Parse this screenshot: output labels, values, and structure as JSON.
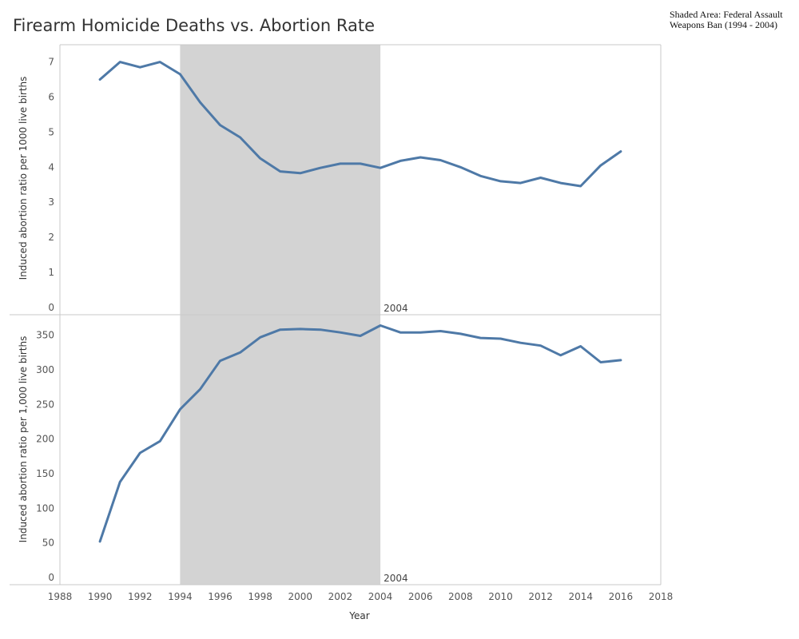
{
  "title": "Firearm Homicide Deaths vs. Abortion Rate",
  "note": "Shaded Area: Federal Assault Weapons Ban (1994 - 2004)",
  "colors": {
    "line": "#4e79a7",
    "shade": "#d3d3d3",
    "border": "#c8c8c8"
  },
  "chart_data": [
    {
      "type": "line",
      "title": "",
      "xlabel": "",
      "ylabel": "Induced abortion ratio per 1000 live births",
      "xlim": [
        1988,
        2018
      ],
      "ylim": [
        0,
        7.4
      ],
      "yticks": [
        0,
        1,
        2,
        3,
        4,
        5,
        6,
        7
      ],
      "grid": false,
      "shaded_range": [
        1994,
        2004
      ],
      "marker_label": "2004",
      "x": [
        1990,
        1991,
        1992,
        1993,
        1994,
        1995,
        1996,
        1997,
        1998,
        1999,
        2000,
        2001,
        2002,
        2003,
        2004,
        2005,
        2006,
        2007,
        2008,
        2009,
        2010,
        2011,
        2012,
        2013,
        2014,
        2015,
        2016
      ],
      "series": [
        {
          "values": [
            6.5,
            7.0,
            6.85,
            7.0,
            6.65,
            5.85,
            5.2,
            4.85,
            4.25,
            3.88,
            3.83,
            3.98,
            4.1,
            4.1,
            3.98,
            4.18,
            4.28,
            4.2,
            4.0,
            3.75,
            3.6,
            3.55,
            3.7,
            3.55,
            3.46,
            4.05,
            4.45
          ]
        }
      ]
    },
    {
      "type": "line",
      "title": "",
      "xlabel": "Year",
      "ylabel": "Induced abortion ratio per 1,000 live births",
      "xlim": [
        1988,
        2018
      ],
      "ylim": [
        0,
        375
      ],
      "yticks": [
        0,
        50,
        100,
        150,
        200,
        250,
        300,
        350
      ],
      "xticks": [
        1988,
        1990,
        1992,
        1994,
        1996,
        1998,
        2000,
        2002,
        2004,
        2006,
        2008,
        2010,
        2012,
        2014,
        2016,
        2018
      ],
      "grid": false,
      "shaded_range": [
        1994,
        2004
      ],
      "marker_label": "2004",
      "x": [
        1990,
        1991,
        1992,
        1993,
        1994,
        1995,
        1996,
        1997,
        1998,
        1999,
        2000,
        2001,
        2002,
        2003,
        2004,
        2005,
        2006,
        2007,
        2008,
        2009,
        2010,
        2011,
        2012,
        2013,
        2014,
        2015,
        2016
      ],
      "series": [
        {
          "values": [
            52,
            138,
            180,
            197,
            243,
            272,
            313,
            325,
            347,
            358,
            359,
            358,
            354,
            349,
            364,
            354,
            354,
            356,
            352,
            346,
            345,
            339,
            335,
            321,
            334,
            311,
            314
          ]
        }
      ]
    }
  ]
}
